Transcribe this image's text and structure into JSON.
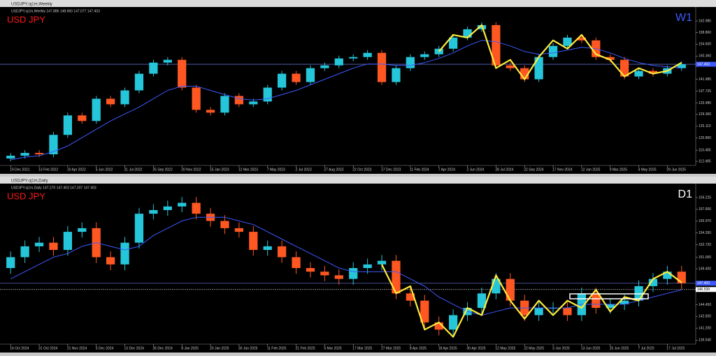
{
  "chart_data": [
    {
      "type": "candlestick",
      "window_title": "USDJPY.oj1m,Weekly",
      "info": "USDJPY.oj1m,Weekly 147.886 148.660 147.077 147.403",
      "symbol_label": "USD JPY",
      "timeframe_label": "W1",
      "categories": [
        "19 Dec 2021",
        null,
        "13 Feb 2022",
        null,
        "10 Apr 2022",
        null,
        "5 Jun 2022",
        null,
        "31 Jul 2022",
        null,
        "25 Sep 2022",
        null,
        "20 Nov 2022",
        null,
        "15 Jan 2023",
        null,
        "12 Mar 2023",
        null,
        "7 May 2023",
        null,
        "2 Jul 2023",
        null,
        "27 Aug 2023",
        null,
        "22 Oct 2023",
        null,
        "17 Dec 2023",
        null,
        "11 Feb 2024",
        null,
        "7 Apr 2024",
        null,
        "2 Jun 2024",
        null,
        "28 Jul 2024",
        null,
        "22 Sep 2024",
        null,
        "17 Nov 2024",
        null,
        "12 Jan 2025",
        null,
        "9 Mar 2025",
        null,
        "4 May 2025",
        null,
        "29 Jun 2025",
        null
      ],
      "open": [
        113.5,
        114.5,
        115.5,
        115,
        122,
        129,
        127,
        135,
        133,
        138,
        144,
        148,
        149,
        139,
        131,
        130,
        136,
        133,
        134,
        139,
        144,
        141,
        146,
        147,
        149.5,
        150,
        151.5,
        141,
        146,
        150,
        151,
        153,
        157,
        160,
        161.5,
        147,
        146,
        142,
        150,
        154,
        157,
        156,
        150,
        149,
        143,
        145,
        144,
        146
      ],
      "high": [
        115.5,
        116.5,
        116.5,
        123,
        130,
        130,
        136,
        136,
        139,
        145,
        149,
        150,
        150,
        140,
        132,
        137,
        137,
        135,
        140,
        145,
        145,
        147,
        148,
        150.5,
        151,
        152.5,
        152.5,
        147,
        151,
        152,
        154,
        158,
        161,
        162.5,
        162.5,
        148,
        147,
        151,
        155,
        158,
        158,
        157,
        151,
        150,
        146,
        146,
        147,
        148.4
      ],
      "low": [
        112.5,
        113.5,
        114,
        114,
        121,
        126,
        126,
        132,
        132,
        137,
        143,
        147,
        138,
        130,
        129,
        129,
        132,
        132,
        133,
        138,
        140,
        140,
        145,
        146,
        148.5,
        149,
        140,
        140,
        145,
        149,
        150,
        152,
        156,
        159,
        146,
        145,
        141,
        141,
        149,
        153,
        155,
        149,
        148,
        142,
        142,
        143,
        143,
        145
      ],
      "close": [
        114.5,
        115.5,
        115,
        122,
        129,
        127,
        135,
        133,
        138,
        144,
        148,
        149,
        139,
        131,
        130,
        136,
        133,
        134,
        139,
        144,
        141,
        146,
        147,
        149.5,
        150,
        151.5,
        141,
        146,
        150,
        151,
        153,
        157,
        160,
        161.5,
        147,
        146,
        142,
        150,
        154,
        157,
        156,
        150,
        149,
        143,
        145,
        144,
        146,
        147.4
      ],
      "up_color": "#26c6da",
      "down_color": "#ff5722",
      "ma": {
        "color": "#3d5afe",
        "values": [
          113,
          114,
          114.5,
          116,
          118,
          121,
          124,
          127,
          129.5,
          132,
          135,
          138,
          139.5,
          139.5,
          138,
          136.5,
          135,
          134.5,
          135,
          136.5,
          138,
          140,
          142,
          144,
          146,
          147.5,
          147.5,
          147,
          147,
          148,
          149.5,
          151.5,
          154,
          156,
          155.5,
          154,
          152,
          151,
          151.5,
          152.5,
          153.5,
          153,
          151.5,
          149.5,
          148,
          147,
          146.5,
          146
        ]
      },
      "zigzag": {
        "color": "#ffeb3b",
        "values": [
          null,
          null,
          null,
          null,
          null,
          null,
          null,
          null,
          null,
          null,
          null,
          null,
          null,
          null,
          null,
          null,
          null,
          null,
          null,
          null,
          null,
          null,
          null,
          null,
          null,
          null,
          null,
          null,
          null,
          null,
          152,
          158,
          157,
          161.5,
          146,
          149,
          142,
          150,
          156,
          153,
          158,
          151,
          149,
          143,
          146,
          144,
          145,
          148
        ]
      },
      "ylim": [
        111,
        165
      ],
      "yticks": [
        {
          "value": 162.985,
          "label": "162.985"
        },
        {
          "value": 158.86,
          "label": "158.860"
        },
        {
          "value": 154.6,
          "label": "154.600"
        },
        {
          "value": 150.36,
          "label": "150.360"
        },
        {
          "value": 141.985,
          "label": "141.985"
        },
        {
          "value": 137.725,
          "label": "137.725"
        },
        {
          "value": 133.485,
          "label": "133.485"
        },
        {
          "value": 129.36,
          "label": "129.360"
        },
        {
          "value": 125.11,
          "label": "125.110"
        },
        {
          "value": 120.86,
          "label": "120.860"
        },
        {
          "value": 116.485,
          "label": "116.485"
        },
        {
          "value": 112.485,
          "label": "112.485"
        }
      ],
      "price_lines": [
        {
          "value": 147.403,
          "label": "147.403"
        }
      ]
    },
    {
      "type": "candlestick",
      "window_title": "USDJPY.oj1m,Daily",
      "info": "USDJPY.oj1m,Daily 147.270 147.403 147.207 147.403",
      "symbol_label": "USD JPY",
      "timeframe_label": "D1",
      "categories": [
        "16 Oct 2024",
        null,
        "31 Oct 2024",
        null,
        "21 Nov 2024",
        null,
        "5 Dec 2024",
        null,
        "13 Dec 2024",
        null,
        "26 Dec 2024",
        null,
        "8 Jan 2025",
        null,
        "20 Jan 2025",
        null,
        "30 Jan 2025",
        null,
        "11 Feb 2025",
        null,
        "21 Feb 2025",
        null,
        "5 Mar 2025",
        null,
        "17 Mar 2025",
        null,
        "27 Mar 2025",
        null,
        "8 Apr 2025",
        null,
        "18 Apr 2025",
        null,
        "30 Apr 2025",
        null,
        "12 May 2025",
        null,
        "22 May 2025",
        null,
        "3 Jun 2025",
        null,
        "13 Jun 2025",
        null,
        "25 Jun 2025",
        null,
        "7 Jul 2025",
        null,
        "17 Jul 2025",
        null
      ],
      "open": [
        149.5,
        151,
        152.5,
        153,
        152,
        154.5,
        155,
        151,
        150,
        153,
        157,
        157.5,
        158,
        158.5,
        157,
        156,
        155,
        154.5,
        152,
        152.5,
        151,
        149.5,
        149,
        148.5,
        148,
        149.5,
        150,
        150.5,
        146,
        145,
        142,
        141,
        143,
        144,
        146,
        148,
        145,
        143,
        144,
        144,
        143,
        146,
        144,
        144.5,
        145,
        147,
        148,
        149
      ],
      "high": [
        151.8,
        153.3,
        153.8,
        153.8,
        155.3,
        155.8,
        155.8,
        151.8,
        153.8,
        157.8,
        158.3,
        158.8,
        159.3,
        159.3,
        157.8,
        156.8,
        155.8,
        155.3,
        153.3,
        153.3,
        151.8,
        150.3,
        149.8,
        149.3,
        150.3,
        150.8,
        151.3,
        151.3,
        146.8,
        145.8,
        142.8,
        143.8,
        144.8,
        146.8,
        148.8,
        148.8,
        145.8,
        144.8,
        144.8,
        144.8,
        146.8,
        146.8,
        145.3,
        145.8,
        147.8,
        148.8,
        149.8,
        149.8
      ],
      "low": [
        148.7,
        150.2,
        151.7,
        151.2,
        151.2,
        153.7,
        150.2,
        149.2,
        149.2,
        152.2,
        156.2,
        156.7,
        157.2,
        156.2,
        155.2,
        154.2,
        153.7,
        151.2,
        151.2,
        150.2,
        148.7,
        148.2,
        147.7,
        147.2,
        147.2,
        148.7,
        149.2,
        145.2,
        144.2,
        141.2,
        140.2,
        140.2,
        142.2,
        143.2,
        145.2,
        144.2,
        142.2,
        142.2,
        143.2,
        142.2,
        142.2,
        143.2,
        143.2,
        143.7,
        144.2,
        146.2,
        147.2,
        146.6
      ],
      "close": [
        151,
        152.5,
        153,
        152,
        154.5,
        155,
        151,
        150,
        153,
        157,
        157.5,
        158,
        158.5,
        157,
        156,
        155,
        154.5,
        152,
        152.5,
        151,
        149.5,
        149,
        148.5,
        148,
        149.5,
        150,
        150.5,
        146,
        145,
        142,
        141,
        143,
        144,
        146,
        148,
        145,
        143,
        144,
        144,
        143,
        146,
        144,
        144.5,
        145,
        147,
        148,
        149,
        147.4
      ],
      "up_color": "#26c6da",
      "down_color": "#ff5722",
      "ma": {
        "color": "#3d5afe",
        "values": [
          148,
          149,
          150,
          151,
          151.5,
          152.5,
          153,
          152.5,
          152,
          152.5,
          154,
          155,
          156,
          156.5,
          156.5,
          156.5,
          156,
          155.5,
          154.5,
          153.5,
          152.5,
          151.5,
          150.5,
          149.5,
          149,
          149,
          149,
          149,
          148,
          147,
          145.5,
          144.5,
          143.5,
          143,
          143.5,
          144,
          144,
          144,
          144,
          144,
          144.5,
          144.5,
          144.5,
          144.5,
          145,
          145.5,
          146,
          146.5
        ]
      },
      "zigzag": {
        "color": "#ffeb3b",
        "values": [
          null,
          null,
          null,
          null,
          null,
          null,
          null,
          null,
          null,
          null,
          null,
          null,
          null,
          null,
          null,
          null,
          null,
          null,
          null,
          null,
          null,
          null,
          null,
          null,
          null,
          null,
          150,
          146,
          147,
          141,
          142,
          140,
          144,
          143,
          148.5,
          145,
          142.5,
          145,
          143,
          145,
          144,
          146.5,
          143.5,
          145.5,
          145,
          148,
          149,
          147.5
        ]
      },
      "ylim": [
        139,
        160
      ],
      "yticks": [
        {
          "value": 159.225,
          "label": "159.225"
        },
        {
          "value": 157.6,
          "label": "157.600"
        },
        {
          "value": 155.97,
          "label": "155.970"
        },
        {
          "value": 154.35,
          "label": "154.350"
        },
        {
          "value": 152.72,
          "label": "152.720"
        },
        {
          "value": 151,
          "label": "151.000"
        },
        {
          "value": 149.4,
          "label": "149.400"
        },
        {
          "value": 144.45,
          "label": "144.450"
        },
        {
          "value": 142.83,
          "label": "142.830"
        },
        {
          "value": 141.2,
          "label": "141.200"
        },
        {
          "value": 139.54,
          "label": "139.540"
        }
      ],
      "price_lines": [
        {
          "value": 147.403,
          "label": "147.403"
        },
        {
          "value": 146.539,
          "label": "146.539"
        }
      ]
    }
  ]
}
